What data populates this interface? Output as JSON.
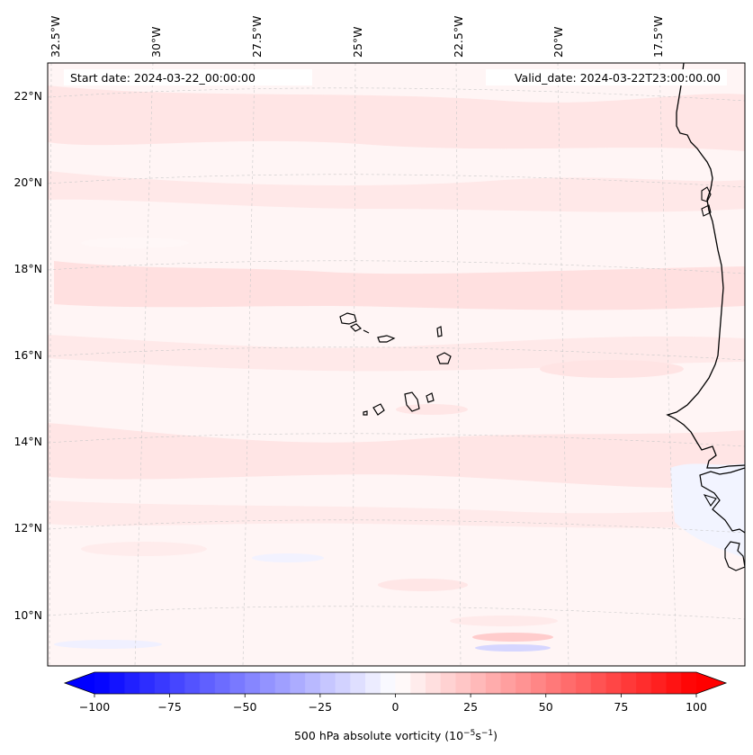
{
  "map": {
    "header_left": "Start date: 2024-03-22_00:00:00",
    "header_right": "Valid_date: 2024-03-22T23:00:00.00",
    "lon_labels": [
      "32.5°W",
      "30°W",
      "27.5°W",
      "25°W",
      "22.5°W",
      "20°W",
      "17.5°W"
    ],
    "lat_labels": [
      "22°N",
      "20°N",
      "18°N",
      "16°N",
      "14°N",
      "12°N",
      "10°N"
    ]
  },
  "colorbar": {
    "ticks": [
      "−100",
      "−75",
      "−50",
      "−25",
      "0",
      "25",
      "50",
      "75",
      "100"
    ],
    "tick_values": [
      -100,
      -75,
      -50,
      -25,
      0,
      25,
      50,
      75,
      100
    ],
    "range": [
      -100,
      100
    ],
    "step": 5,
    "colormap": "bwr",
    "extend": "both",
    "label_main": "500 hPa absolute vorticity (10",
    "label_exp1": "−5",
    "label_mid": "s",
    "label_exp2": "−1",
    "label_end": ")"
  },
  "colors": {
    "low": "#0000ff",
    "mid": "#ffffff",
    "high": "#ff0000",
    "field_base": "#fff5f5",
    "coast": "#000000"
  }
}
